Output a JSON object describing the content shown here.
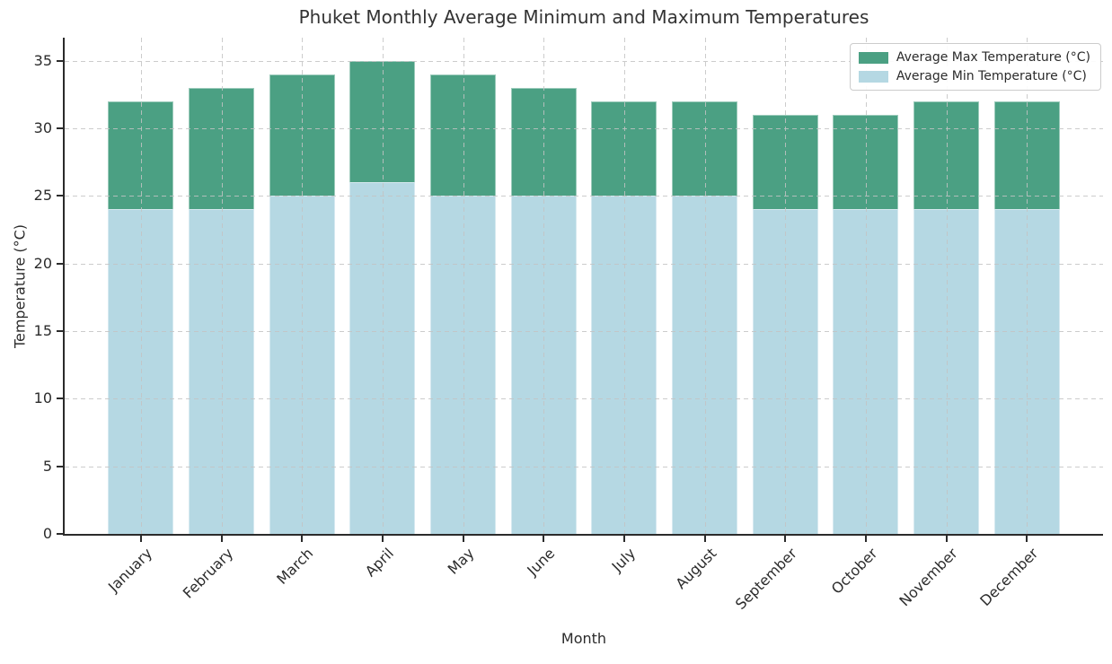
{
  "chart_data": {
    "type": "bar",
    "title": "Phuket Monthly Average Minimum and Maximum Temperatures",
    "xlabel": "Month",
    "ylabel": "Temperature (°C)",
    "categories": [
      "January",
      "February",
      "March",
      "April",
      "May",
      "June",
      "July",
      "August",
      "September",
      "October",
      "November",
      "December"
    ],
    "series": [
      {
        "name": "Average Max Temperature (°C)",
        "color": "#4BA083",
        "values": [
          32,
          33,
          34,
          35,
          34,
          33,
          32,
          32,
          31,
          31,
          32,
          32
        ]
      },
      {
        "name": "Average Min Temperature (°C)",
        "color": "#B5D8E3",
        "values": [
          24,
          24,
          25,
          26,
          25,
          25,
          25,
          25,
          24,
          24,
          24,
          24
        ]
      }
    ],
    "yticks": [
      0,
      5,
      10,
      15,
      20,
      25,
      30,
      35
    ],
    "ylim": [
      0,
      36.7
    ],
    "grid": "dashed both axes, drawn over bars",
    "legend_position": "upper right",
    "bar_style": "overlaid: min series drawn in front of max series from baseline",
    "x_tick_label_rotation_deg": 45
  },
  "colors": {
    "max_bar": "#4BA083",
    "min_bar": "#B5D8E3",
    "grid": "#c3c3c3",
    "spine": "#2b2b2b",
    "text": "#2b2b2b",
    "title": "#333333",
    "legend_border": "#cccccc",
    "background": "#ffffff"
  }
}
